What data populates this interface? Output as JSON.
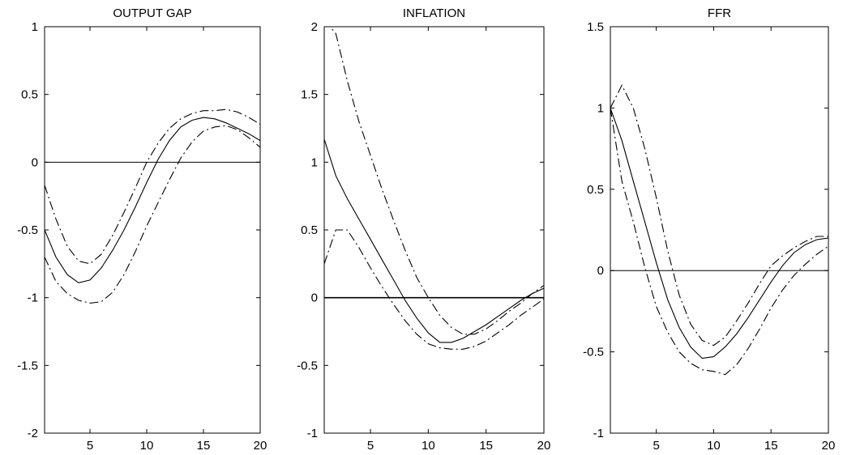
{
  "chart_data": [
    {
      "type": "line",
      "title": "OUTPUT GAP",
      "xlim": [
        1,
        20
      ],
      "ylim": [
        -2,
        1
      ],
      "xticks": [
        5,
        10,
        15,
        20
      ],
      "yticks": [
        -2,
        -1.5,
        -1,
        -0.5,
        0,
        0.5,
        1
      ],
      "xtick_labels": [
        "5",
        "10",
        "15",
        "20"
      ],
      "ytick_labels": [
        "-2",
        "-1.5",
        "-1",
        "-0.5",
        "0",
        "0.5",
        "1"
      ],
      "zero_line": true,
      "x": [
        1,
        2,
        3,
        4,
        5,
        6,
        7,
        8,
        9,
        10,
        11,
        12,
        13,
        14,
        15,
        16,
        17,
        18,
        19,
        20
      ],
      "series": [
        {
          "style": "solid",
          "values": [
            -0.5,
            -0.7,
            -0.83,
            -0.89,
            -0.87,
            -0.78,
            -0.65,
            -0.5,
            -0.33,
            -0.15,
            0.02,
            0.16,
            0.26,
            0.31,
            0.33,
            0.32,
            0.29,
            0.25,
            0.21,
            0.16
          ]
        },
        {
          "style": "dashdot",
          "values": [
            -0.17,
            -0.42,
            -0.62,
            -0.73,
            -0.75,
            -0.68,
            -0.54,
            -0.37,
            -0.19,
            0.0,
            0.14,
            0.25,
            0.32,
            0.36,
            0.38,
            0.38,
            0.39,
            0.37,
            0.33,
            0.28
          ]
        },
        {
          "style": "dashdot",
          "values": [
            -0.7,
            -0.88,
            -0.97,
            -1.02,
            -1.04,
            -1.03,
            -0.96,
            -0.83,
            -0.66,
            -0.47,
            -0.3,
            -0.13,
            0.03,
            0.15,
            0.23,
            0.26,
            0.27,
            0.24,
            0.18,
            0.11
          ]
        }
      ]
    },
    {
      "type": "line",
      "title": "INFLATION",
      "xlim": [
        1,
        20
      ],
      "ylim": [
        -1,
        2
      ],
      "xticks": [
        5,
        10,
        15,
        20
      ],
      "yticks": [
        -1,
        -0.5,
        0,
        0.5,
        1,
        1.5,
        2
      ],
      "xtick_labels": [
        "5",
        "10",
        "15",
        "20"
      ],
      "ytick_labels": [
        "-1",
        "-0.5",
        "0",
        "0.5",
        "1",
        "1.5",
        "2"
      ],
      "zero_line": true,
      "x": [
        1,
        2,
        3,
        4,
        5,
        6,
        7,
        8,
        9,
        10,
        11,
        12,
        13,
        14,
        15,
        16,
        17,
        18,
        19,
        20
      ],
      "series": [
        {
          "style": "solid",
          "values": [
            1.17,
            0.9,
            0.73,
            0.58,
            0.43,
            0.28,
            0.13,
            -0.02,
            -0.15,
            -0.26,
            -0.33,
            -0.33,
            -0.3,
            -0.25,
            -0.2,
            -0.14,
            -0.08,
            -0.02,
            0.03,
            0.07
          ]
        },
        {
          "style": "dashdot",
          "values": [
            2.05,
            1.95,
            1.6,
            1.3,
            1.05,
            0.8,
            0.57,
            0.35,
            0.15,
            0.0,
            -0.13,
            -0.22,
            -0.27,
            -0.27,
            -0.23,
            -0.17,
            -0.1,
            -0.04,
            0.03,
            0.09
          ]
        },
        {
          "style": "dashdot",
          "values": [
            0.25,
            0.5,
            0.5,
            0.37,
            0.22,
            0.08,
            -0.05,
            -0.17,
            -0.27,
            -0.34,
            -0.37,
            -0.38,
            -0.38,
            -0.36,
            -0.32,
            -0.26,
            -0.2,
            -0.13,
            -0.07,
            -0.01
          ]
        }
      ]
    },
    {
      "type": "line",
      "title": "FFR",
      "xlim": [
        1,
        20
      ],
      "ylim": [
        -1,
        1.5
      ],
      "xticks": [
        5,
        10,
        15,
        20
      ],
      "yticks": [
        -1,
        -0.5,
        0,
        0.5,
        1,
        1.5
      ],
      "xtick_labels": [
        "5",
        "10",
        "15",
        "20"
      ],
      "ytick_labels": [
        "-1",
        "-0.5",
        "0",
        "0.5",
        "1",
        "1.5"
      ],
      "zero_line": true,
      "x": [
        1,
        2,
        3,
        4,
        5,
        6,
        7,
        8,
        9,
        10,
        11,
        12,
        13,
        14,
        15,
        16,
        17,
        18,
        19,
        20
      ],
      "series": [
        {
          "style": "solid",
          "values": [
            1.0,
            0.8,
            0.55,
            0.3,
            0.05,
            -0.18,
            -0.35,
            -0.47,
            -0.54,
            -0.53,
            -0.47,
            -0.39,
            -0.29,
            -0.18,
            -0.07,
            0.03,
            0.11,
            0.16,
            0.19,
            0.2
          ]
        },
        {
          "style": "dashdot",
          "values": [
            1.0,
            1.14,
            1.0,
            0.75,
            0.45,
            0.12,
            -0.15,
            -0.33,
            -0.43,
            -0.46,
            -0.41,
            -0.31,
            -0.2,
            -0.08,
            0.03,
            0.09,
            0.14,
            0.18,
            0.21,
            0.21
          ]
        },
        {
          "style": "dashdot",
          "values": [
            1.0,
            0.55,
            0.3,
            0.02,
            -0.22,
            -0.38,
            -0.5,
            -0.57,
            -0.61,
            -0.62,
            -0.64,
            -0.58,
            -0.48,
            -0.36,
            -0.23,
            -0.12,
            -0.03,
            0.04,
            0.1,
            0.15
          ]
        }
      ]
    }
  ]
}
